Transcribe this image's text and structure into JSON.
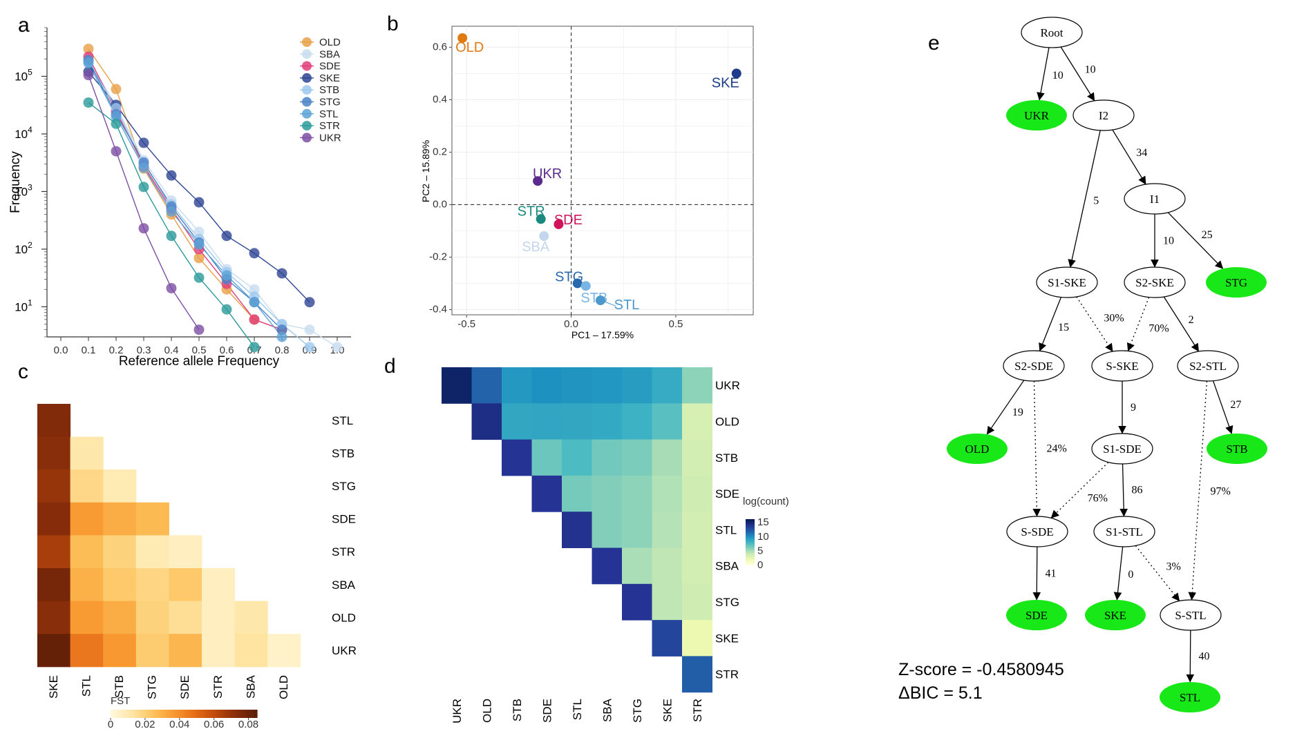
{
  "panel_labels": {
    "a": "a",
    "b": "b",
    "c": "c",
    "d": "d",
    "e": "e"
  },
  "chart_data": [
    {
      "panel": "a",
      "type": "line",
      "xlabel": "Reference allele Frequency",
      "ylabel": "Frequency",
      "y_scale": "log10",
      "xlim": [
        -0.05,
        1.05
      ],
      "ylim": [
        3,
        700000
      ],
      "x_ticks": [
        "0.0",
        "0.1",
        "0.2",
        "0.3",
        "0.4",
        "0.5",
        "0.6",
        "0.7",
        "0.8",
        "0.9",
        "1.0"
      ],
      "y_ticks": [
        {
          "value": 10,
          "base": "10",
          "exp": "1"
        },
        {
          "value": 100,
          "base": "10",
          "exp": "2"
        },
        {
          "value": 1000,
          "base": "10",
          "exp": "3"
        },
        {
          "value": 10000,
          "base": "10",
          "exp": "4"
        },
        {
          "value": 100000,
          "base": "10",
          "exp": "5"
        }
      ],
      "legend_position": "top-right",
      "series": [
        {
          "name": "OLD",
          "color": "#E8A048",
          "x": [
            0.1,
            0.2,
            0.3,
            0.4,
            0.5,
            0.6,
            0.7,
            0.8
          ],
          "values": [
            300000,
            60000,
            2500,
            400,
            70,
            20,
            6,
            4
          ]
        },
        {
          "name": "SBA",
          "color": "#C8DCF0",
          "x": [
            0.1,
            0.2,
            0.3,
            0.4,
            0.5,
            0.6,
            0.7,
            0.8,
            0.9,
            1.0
          ],
          "values": [
            200000,
            30000,
            3500,
            700,
            200,
            45,
            20,
            5,
            4,
            2
          ]
        },
        {
          "name": "SDE",
          "color": "#E03C78",
          "x": [
            0.1,
            0.2,
            0.3,
            0.4,
            0.5,
            0.6,
            0.7,
            0.8
          ],
          "values": [
            220000,
            25000,
            2800,
            500,
            100,
            25,
            6,
            4
          ]
        },
        {
          "name": "SKE",
          "color": "#2D4494",
          "x": [
            0.1,
            0.2,
            0.3,
            0.4,
            0.5,
            0.6,
            0.7,
            0.8,
            0.9
          ],
          "values": [
            120000,
            32000,
            7000,
            1900,
            650,
            170,
            85,
            38,
            12
          ]
        },
        {
          "name": "STB",
          "color": "#9CC8EE",
          "x": [
            0.1,
            0.2,
            0.3,
            0.4,
            0.5,
            0.6,
            0.7,
            0.8,
            0.9
          ],
          "values": [
            180000,
            28000,
            3000,
            600,
            150,
            40,
            15,
            5,
            2
          ]
        },
        {
          "name": "STG",
          "color": "#4A82C8",
          "x": [
            0.1,
            0.2,
            0.3,
            0.4,
            0.5,
            0.6,
            0.7,
            0.8
          ],
          "values": [
            190000,
            22000,
            3200,
            550,
            130,
            30,
            12,
            4
          ]
        },
        {
          "name": "STL",
          "color": "#5CA2D6",
          "x": [
            0.1,
            0.2,
            0.3,
            0.4,
            0.5,
            0.6,
            0.7,
            0.8
          ],
          "values": [
            170000,
            20000,
            2600,
            450,
            120,
            35,
            12,
            3
          ]
        },
        {
          "name": "STR",
          "color": "#2A9A9A",
          "x": [
            0.1,
            0.2,
            0.3,
            0.4,
            0.5,
            0.6,
            0.7
          ],
          "values": [
            35000,
            15000,
            1200,
            170,
            32,
            9,
            2
          ]
        },
        {
          "name": "UKR",
          "color": "#7D4EA4",
          "x": [
            0.1,
            0.2,
            0.3,
            0.4,
            0.5
          ],
          "values": [
            105000,
            5000,
            230,
            21,
            4
          ]
        }
      ]
    },
    {
      "panel": "b",
      "type": "scatter",
      "xlabel": "PC1 – 17.59%",
      "ylabel": "PC2 – 15.89%",
      "xlim": [
        -0.57,
        0.87
      ],
      "ylim": [
        -0.42,
        0.68
      ],
      "x_ticks": [
        "-0.5",
        "0.0",
        "0.5"
      ],
      "y_ticks": [
        "0.6",
        "0.4",
        "0.2",
        "0.0",
        "-0.2",
        "-0.4"
      ],
      "points": [
        {
          "name": "OLD",
          "color": "#E07B14",
          "x": -0.52,
          "y": 0.635
        },
        {
          "name": "SKE",
          "color": "#1D3C8C",
          "x": 0.79,
          "y": 0.5
        },
        {
          "name": "UKR",
          "color": "#5A2A8C",
          "x": -0.16,
          "y": 0.09
        },
        {
          "name": "STR",
          "color": "#1A8A80",
          "x": -0.145,
          "y": -0.055
        },
        {
          "name": "SDE",
          "color": "#D0145C",
          "x": -0.06,
          "y": -0.075
        },
        {
          "name": "SBA",
          "color": "#C4D6EC",
          "x": -0.13,
          "y": -0.12
        },
        {
          "name": "STG",
          "color": "#2A68AE",
          "x": 0.03,
          "y": -0.3
        },
        {
          "name": "STB",
          "color": "#78B4E4",
          "x": 0.07,
          "y": -0.31
        },
        {
          "name": "STL",
          "color": "#4A98CC",
          "x": 0.14,
          "y": -0.365
        }
      ],
      "point_labels": {
        "OLD": "OLD",
        "SKE": "SKE",
        "UKR": "UKR",
        "STR": "STR",
        "SDE": "SDE",
        "SBA": "SBA",
        "STG": "STG",
        "STB": "STB",
        "STL": "STL"
      }
    },
    {
      "panel": "c",
      "type": "heatmap",
      "columns": [
        "SKE",
        "STL",
        "STB",
        "STG",
        "SDE",
        "STR",
        "SBA",
        "OLD"
      ],
      "rows": [
        "STL",
        "STB",
        "STG",
        "SDE",
        "STR",
        "SBA",
        "OLD",
        "UKR"
      ],
      "values": [
        [
          0.075
        ],
        [
          0.073,
          0.011
        ],
        [
          0.07,
          0.017,
          0.009
        ],
        [
          0.074,
          0.036,
          0.031,
          0.027
        ],
        [
          0.066,
          0.026,
          0.019,
          0.009,
          0.006
        ],
        [
          0.078,
          0.03,
          0.022,
          0.018,
          0.022,
          0.006
        ],
        [
          0.073,
          0.036,
          0.031,
          0.019,
          0.015,
          0.006,
          0.011
        ],
        [
          0.083,
          0.046,
          0.037,
          0.021,
          0.028,
          0.006,
          0.013,
          0.004
        ]
      ],
      "colorbar": {
        "label": "FST",
        "ticks": [
          "0",
          "0.02",
          "0.04",
          "0.06",
          "0.08"
        ],
        "range": [
          0,
          0.085
        ],
        "colors": [
          "#FFF8DA",
          "#FEE5A6",
          "#FDC35C",
          "#F89A32",
          "#E66E18",
          "#BF4A0C",
          "#8A2E0A",
          "#5C1E08"
        ]
      }
    },
    {
      "panel": "d",
      "type": "heatmap",
      "columns": [
        "UKR",
        "OLD",
        "STB",
        "SDE",
        "STL",
        "SBA",
        "STG",
        "SKE",
        "STR"
      ],
      "rows": [
        "UKR",
        "OLD",
        "STB",
        "SDE",
        "STL",
        "SBA",
        "STG",
        "SKE",
        "STR"
      ],
      "values": [
        [
          15.5,
          11.8,
          9.6,
          10.0,
          9.8,
          9.7,
          9.4,
          8.6,
          5.6
        ],
        [
          null,
          14.5,
          8.8,
          8.9,
          8.8,
          8.7,
          8.2,
          7.2,
          3.2
        ],
        [
          null,
          null,
          14.0,
          6.6,
          7.6,
          6.4,
          6.1,
          4.9,
          3.4
        ],
        [
          null,
          null,
          null,
          14.0,
          6.3,
          5.9,
          5.6,
          4.6,
          3.6
        ],
        [
          null,
          null,
          null,
          null,
          14.2,
          5.9,
          5.6,
          4.5,
          3.4
        ],
        [
          null,
          null,
          null,
          null,
          null,
          14.0,
          4.8,
          4.2,
          3.4
        ],
        [
          null,
          null,
          null,
          null,
          null,
          null,
          14.0,
          4.2,
          3.6
        ],
        [
          null,
          null,
          null,
          null,
          null,
          null,
          null,
          13.2,
          2.0
        ],
        [
          null,
          null,
          null,
          null,
          null,
          null,
          null,
          null,
          12.0
        ]
      ],
      "colorbar": {
        "label": "log(count)",
        "ticks": [
          "15",
          "10",
          "5",
          "0"
        ],
        "range": [
          0,
          16
        ],
        "colors": [
          "#FFFFD9",
          "#EDF8B1",
          "#C7E9B4",
          "#7FCDBB",
          "#41B6C4",
          "#1D91C0",
          "#225EA8",
          "#253494",
          "#081D58"
        ]
      }
    }
  ],
  "tree": {
    "nodes": [
      {
        "id": "root",
        "label": "Root",
        "leaf": false
      },
      {
        "id": "ukr",
        "label": "UKR",
        "leaf": true
      },
      {
        "id": "i2",
        "label": "I2",
        "leaf": false
      },
      {
        "id": "i1",
        "label": "I1",
        "leaf": false
      },
      {
        "id": "s1ske",
        "label": "S1-SKE",
        "leaf": false
      },
      {
        "id": "s2ske",
        "label": "S2-SKE",
        "leaf": false
      },
      {
        "id": "stg",
        "label": "STG",
        "leaf": true
      },
      {
        "id": "s2sde",
        "label": "S2-SDE",
        "leaf": false
      },
      {
        "id": "sske",
        "label": "S-SKE",
        "leaf": false
      },
      {
        "id": "s2stl",
        "label": "S2-STL",
        "leaf": false
      },
      {
        "id": "old",
        "label": "OLD",
        "leaf": true
      },
      {
        "id": "s1sde",
        "label": "S1-SDE",
        "leaf": false
      },
      {
        "id": "stb",
        "label": "STB",
        "leaf": true
      },
      {
        "id": "ssde",
        "label": "S-SDE",
        "leaf": false
      },
      {
        "id": "s1stl",
        "label": "S1-STL",
        "leaf": false
      },
      {
        "id": "sde",
        "label": "SDE",
        "leaf": true
      },
      {
        "id": "ske",
        "label": "SKE",
        "leaf": true
      },
      {
        "id": "sstl",
        "label": "S-STL",
        "leaf": false
      },
      {
        "id": "stl",
        "label": "STL",
        "leaf": true
      }
    ],
    "edges": [
      {
        "from": "root",
        "to": "ukr",
        "label": "10",
        "admix": false
      },
      {
        "from": "root",
        "to": "i2",
        "label": "10",
        "admix": false
      },
      {
        "from": "i2",
        "to": "s1ske",
        "label": "5",
        "admix": false
      },
      {
        "from": "i2",
        "to": "i1",
        "label": "34",
        "admix": false
      },
      {
        "from": "i1",
        "to": "s2ske",
        "label": "10",
        "admix": false
      },
      {
        "from": "i1",
        "to": "stg",
        "label": "25",
        "admix": false
      },
      {
        "from": "s1ske",
        "to": "s2sde",
        "label": "15",
        "admix": false
      },
      {
        "from": "s1ske",
        "to": "sske",
        "label": "30%",
        "admix": true
      },
      {
        "from": "s2ske",
        "to": "sske",
        "label": "70%",
        "admix": true
      },
      {
        "from": "s2ske",
        "to": "s2stl",
        "label": "2",
        "admix": false
      },
      {
        "from": "s2sde",
        "to": "old",
        "label": "19",
        "admix": false
      },
      {
        "from": "s2sde",
        "to": "ssde",
        "label": "24%",
        "admix": true
      },
      {
        "from": "sske",
        "to": "s1sde",
        "label": "9",
        "admix": false
      },
      {
        "from": "s2stl",
        "to": "stb",
        "label": "27",
        "admix": false
      },
      {
        "from": "s2stl",
        "to": "sstl",
        "label": "97%",
        "admix": true
      },
      {
        "from": "s1sde",
        "to": "ssde",
        "label": "76%",
        "admix": true
      },
      {
        "from": "s1sde",
        "to": "s1stl",
        "label": "86",
        "admix": false
      },
      {
        "from": "ssde",
        "to": "sde",
        "label": "41",
        "admix": false
      },
      {
        "from": "s1stl",
        "to": "ske",
        "label": "0",
        "admix": false
      },
      {
        "from": "s1stl",
        "to": "sstl",
        "label": "3%",
        "admix": true
      },
      {
        "from": "sstl",
        "to": "stl",
        "label": "40",
        "admix": false
      }
    ]
  },
  "stats": {
    "zscore": "Z-score = -0.4580945",
    "dbic": "ΔBIC = 5.1"
  },
  "colors": {
    "leaf_fill": "#18E818",
    "node_fill": "#FFFFFF",
    "line": "#000000"
  }
}
